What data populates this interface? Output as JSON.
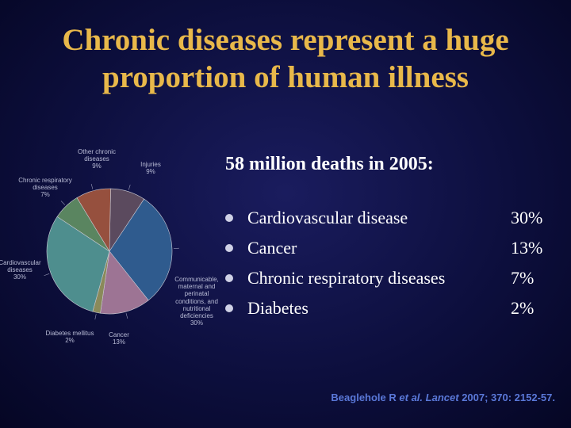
{
  "slide": {
    "title_line1": "Chronic diseases represent a huge",
    "title_line2": "proportion of human illness",
    "subtitle": "58 million deaths in 2005:",
    "items": [
      {
        "label": "Cardiovascular disease",
        "value": "30%"
      },
      {
        "label": "Cancer",
        "value": "13%"
      },
      {
        "label": "Chronic respiratory diseases",
        "value": "7%"
      },
      {
        "label": "Diabetes",
        "value": "2%"
      }
    ],
    "citation": {
      "authors": "Beaglehole R",
      "etal": "et al.",
      "journal": "Lancet",
      "ref": "2007; 370: 2152-57."
    }
  },
  "chart_data": {
    "type": "pie",
    "slices": [
      {
        "label_lines": [
          "Injuries",
          "9%"
        ],
        "value": 9,
        "color": "#5b4a5e"
      },
      {
        "label_lines": [
          "Communicable,",
          "maternal and",
          "perinatal",
          "conditions, and",
          "nutritional",
          "deficiencies",
          "30%"
        ],
        "value": 30,
        "color": "#2f5b8e"
      },
      {
        "label_lines": [
          "Cancer",
          "13%"
        ],
        "value": 13,
        "color": "#9d7494"
      },
      {
        "label_lines": [
          "Diabetes mellitus",
          "2%"
        ],
        "value": 2,
        "color": "#8a8a5a"
      },
      {
        "label_lines": [
          "Cardiovascular",
          "diseases",
          "30%"
        ],
        "value": 30,
        "color": "#4e8e8e"
      },
      {
        "label_lines": [
          "Chronic respiratory",
          "diseases",
          "7%"
        ],
        "value": 7,
        "color": "#5a8560"
      },
      {
        "label_lines": [
          "Other chronic",
          "diseases",
          "9%"
        ],
        "value": 9,
        "color": "#96503e"
      }
    ]
  }
}
